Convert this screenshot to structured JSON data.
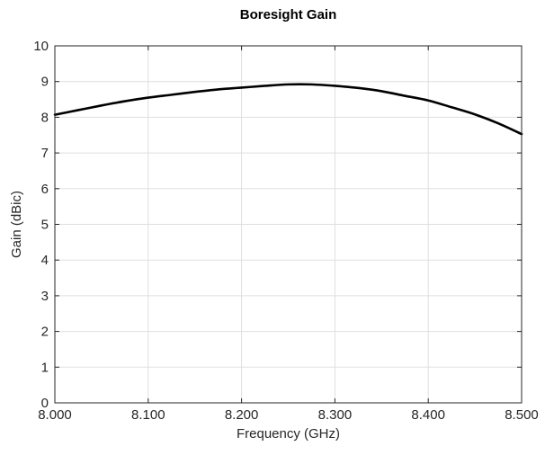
{
  "chart_data": {
    "type": "line",
    "title": "Boresight Gain",
    "xlabel": "Frequency (GHz)",
    "ylabel": "Gain (dBic)",
    "xlim": [
      8.0,
      8.5
    ],
    "ylim": [
      0,
      10
    ],
    "xticks": [
      8.0,
      8.1,
      8.2,
      8.3,
      8.4,
      8.5
    ],
    "xtick_labels": [
      "8.000",
      "8.100",
      "8.200",
      "8.300",
      "8.400",
      "8.500"
    ],
    "yticks": [
      0,
      1,
      2,
      3,
      4,
      5,
      6,
      7,
      8,
      9,
      10
    ],
    "ytick_labels": [
      "0",
      "1",
      "2",
      "3",
      "4",
      "5",
      "6",
      "7",
      "8",
      "9",
      "10"
    ],
    "grid": true,
    "series": [
      {
        "color": "#000000",
        "x": [
          8.0,
          8.025,
          8.05,
          8.075,
          8.1,
          8.125,
          8.15,
          8.175,
          8.2,
          8.225,
          8.25,
          8.275,
          8.3,
          8.325,
          8.35,
          8.375,
          8.4,
          8.425,
          8.45,
          8.475,
          8.5
        ],
        "y": [
          8.07,
          8.2,
          8.33,
          8.45,
          8.55,
          8.63,
          8.71,
          8.78,
          8.83,
          8.88,
          8.92,
          8.92,
          8.88,
          8.82,
          8.73,
          8.6,
          8.47,
          8.28,
          8.08,
          7.83,
          7.53
        ]
      }
    ]
  }
}
